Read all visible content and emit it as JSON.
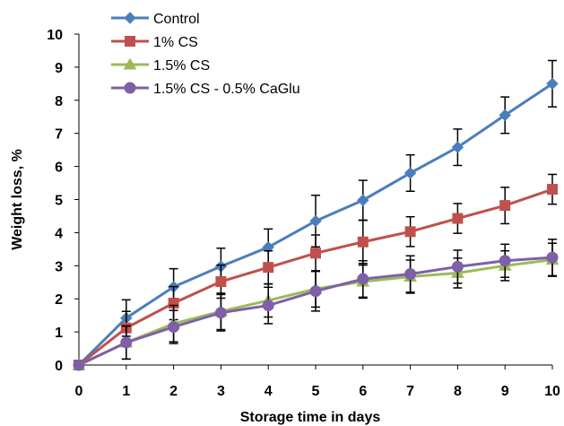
{
  "chart_data": {
    "type": "line",
    "title": "",
    "xlabel": "Storage time in days",
    "ylabel": "Weight loss, %",
    "x": [
      0,
      1,
      2,
      3,
      4,
      5,
      6,
      7,
      8,
      9,
      10
    ],
    "xlim": [
      0,
      10
    ],
    "ylim": [
      0,
      10
    ],
    "x_ticks": [
      0,
      1,
      2,
      3,
      4,
      5,
      6,
      7,
      8,
      9,
      10
    ],
    "y_ticks": [
      0,
      1,
      2,
      3,
      4,
      5,
      6,
      7,
      8,
      9,
      10
    ],
    "grid": false,
    "legend_position": "top-left",
    "series": [
      {
        "name": "Control",
        "color": "#4a7ebb",
        "marker": "diamond",
        "values": [
          0,
          1.42,
          2.36,
          2.98,
          3.56,
          4.35,
          4.98,
          5.8,
          6.58,
          7.55,
          8.5
        ],
        "error": [
          0,
          0.55,
          0.55,
          0.55,
          0.55,
          0.78,
          0.6,
          0.55,
          0.55,
          0.55,
          0.7
        ]
      },
      {
        "name": "1% CS",
        "color": "#c0504d",
        "marker": "square",
        "values": [
          0,
          1.12,
          1.87,
          2.52,
          2.95,
          3.38,
          3.72,
          4.03,
          4.43,
          4.82,
          5.31
        ],
        "error": [
          0,
          0.5,
          0.5,
          0.5,
          0.5,
          0.55,
          0.65,
          0.45,
          0.45,
          0.55,
          0.45
        ]
      },
      {
        "name": "1.5% CS",
        "color": "#9bbb59",
        "marker": "triangle",
        "values": [
          0,
          0.68,
          1.25,
          1.62,
          1.95,
          2.3,
          2.52,
          2.67,
          2.78,
          3.0,
          3.18
        ],
        "error": [
          0,
          0.5,
          0.55,
          0.55,
          0.5,
          0.55,
          0.5,
          0.5,
          0.45,
          0.45,
          0.5
        ]
      },
      {
        "name": "1.5% CS - 0.5% CaGlu",
        "color": "#7f5fa8",
        "marker": "circle",
        "values": [
          0,
          0.68,
          1.15,
          1.58,
          1.8,
          2.23,
          2.6,
          2.75,
          2.97,
          3.15,
          3.25
        ],
        "error": [
          0,
          0.5,
          0.5,
          0.55,
          0.55,
          0.6,
          0.55,
          0.55,
          0.5,
          0.5,
          0.55
        ]
      }
    ]
  }
}
